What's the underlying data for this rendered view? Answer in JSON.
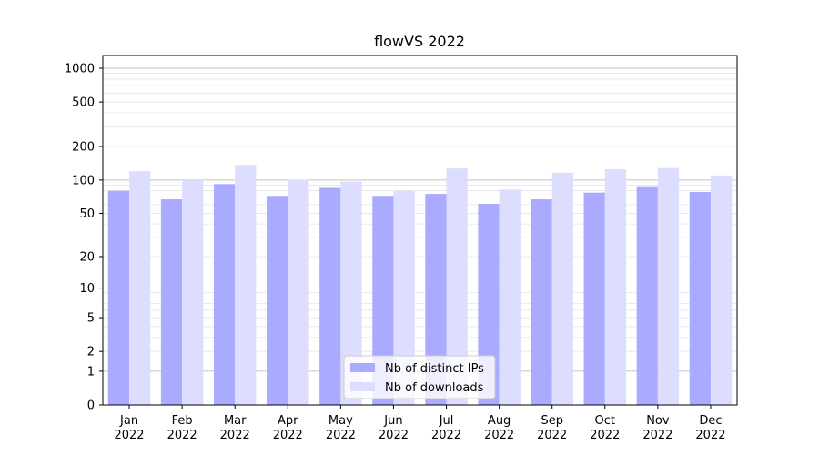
{
  "chart_data": {
    "type": "bar",
    "title": "flowVS 2022",
    "xlabel": "",
    "ylabel": "",
    "y_scale": "symlog",
    "ylim": [
      0,
      1300
    ],
    "y_ticks": [
      0,
      1,
      2,
      5,
      10,
      20,
      50,
      100,
      200,
      500,
      1000
    ],
    "grid": true,
    "legend_position": "bottom-center",
    "categories": [
      "Jan\n2022",
      "Feb\n2022",
      "Mar\n2022",
      "Apr\n2022",
      "May\n2022",
      "Jun\n2022",
      "Jul\n2022",
      "Aug\n2022",
      "Sep\n2022",
      "Oct\n2022",
      "Nov\n2022",
      "Dec\n2022"
    ],
    "series": [
      {
        "name": "Nb of distinct IPs",
        "color": "#aaaaff",
        "values": [
          80,
          67,
          92,
          72,
          85,
          72,
          75,
          61,
          67,
          77,
          88,
          78
        ]
      },
      {
        "name": "Nb of downloads",
        "color": "#ddddff",
        "values": [
          120,
          100,
          137,
          101,
          97,
          80,
          127,
          82,
          116,
          125,
          128,
          110
        ]
      }
    ]
  }
}
